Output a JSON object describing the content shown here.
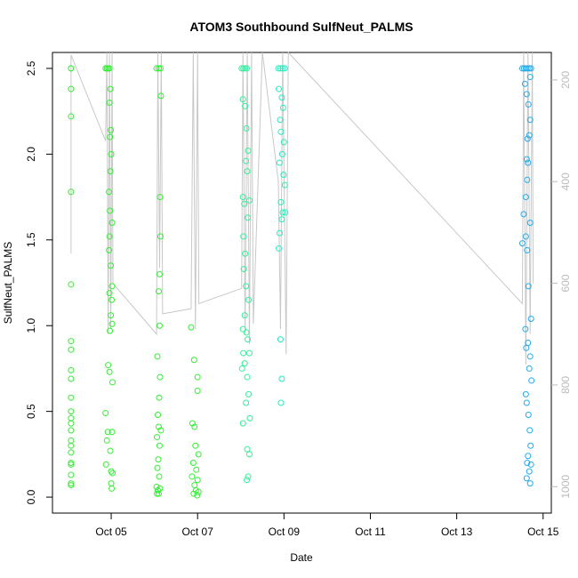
{
  "chart_data": {
    "type": "scatter",
    "title": "ATOM3 Southbound SulfNeut_PALMS",
    "x_label": "Date",
    "y_label": "SulfNeut_PALMS",
    "xlim": [
      3.64,
      15.19
    ],
    "ylim": [
      -0.093,
      2.593
    ],
    "y2lim": [
      1052,
      146
    ],
    "xticks": [
      {
        "value": 5,
        "label": "Oct 05"
      },
      {
        "value": 7,
        "label": "Oct 07"
      },
      {
        "value": 9,
        "label": "Oct 09"
      },
      {
        "value": 11,
        "label": "Oct 11"
      },
      {
        "value": 13,
        "label": "Oct 13"
      },
      {
        "value": 15,
        "label": "Oct 15"
      }
    ],
    "yticks": [
      {
        "value": 0,
        "label": "0.0"
      },
      {
        "value": 0.5,
        "label": "0.5"
      },
      {
        "value": 1,
        "label": "1.0"
      },
      {
        "value": 1.5,
        "label": "1.5"
      },
      {
        "value": 2,
        "label": "2.0"
      },
      {
        "value": 2.5,
        "label": "2.5"
      }
    ],
    "y2ticks": [
      200,
      400,
      600,
      800,
      1000
    ],
    "series": [
      {
        "type": "line",
        "axis": "y2",
        "color": "#c8c8c8",
        "x": [
          4.07,
          4.07,
          4.87,
          4.9,
          4.93,
          4.96,
          4.99,
          5.02,
          5.04,
          6.05,
          6.08,
          6.12,
          6.16,
          6.19,
          6.85,
          6.9,
          6.95,
          7.0,
          7.03,
          8.02,
          8.05,
          8.1,
          8.15,
          8.2,
          8.25,
          8.29,
          8.5,
          8.87,
          8.92,
          8.97,
          9.05,
          9.1,
          14.52,
          14.55,
          14.6,
          14.65,
          14.7,
          14.75,
          14.77
        ],
        "values": [
          541,
          151,
          320,
          146,
          700,
          146,
          690,
          146,
          600,
          700,
          146,
          570,
          146,
          660,
          650,
          146,
          690,
          146,
          640,
          610,
          146,
          700,
          146,
          720,
          146,
          680,
          146,
          400,
          690,
          146,
          740,
          146,
          640,
          146,
          760,
          146,
          700,
          146,
          600
        ]
      },
      {
        "type": "scatter",
        "color": "#33ee33",
        "x": [
          4.07,
          4.07,
          4.07,
          4.07,
          4.07,
          4.07,
          4.07,
          4.07,
          4.07,
          4.07,
          4.07,
          4.07,
          4.07,
          4.07,
          4.07,
          4.07,
          4.07,
          4.07,
          4.07,
          4.07,
          4.07,
          4.07,
          4.07
        ],
        "values": [
          2.5,
          2.5,
          2.38,
          2.22,
          1.78,
          1.24,
          0.91,
          0.86,
          0.74,
          0.69,
          0.58,
          0.5,
          0.46,
          0.43,
          0.39,
          0.33,
          0.3,
          0.26,
          0.2,
          0.19,
          0.13,
          0.08,
          0.07
        ]
      },
      {
        "type": "scatter",
        "color": "#33ee33",
        "x": [
          4.87,
          4.9,
          4.93,
          4.96,
          4.98,
          4.96,
          4.99,
          4.97,
          5.0,
          4.98,
          4.95,
          4.97,
          5.02,
          4.96,
          4.95,
          4.99,
          5.02,
          4.96,
          5.01,
          4.99,
          4.97,
          5.02,
          4.93,
          4.96,
          5.03,
          4.87,
          4.92,
          5.02,
          4.9,
          4.98,
          4.88,
          5.0,
          5.03,
          5.0,
          5.01
        ],
        "values": [
          2.5,
          2.5,
          2.5,
          2.5,
          2.38,
          2.3,
          2.14,
          2.1,
          2.0,
          1.9,
          1.78,
          1.67,
          1.6,
          1.52,
          1.44,
          1.35,
          1.23,
          1.19,
          1.15,
          1.06,
          0.97,
          1.01,
          0.77,
          0.73,
          0.67,
          0.49,
          0.38,
          0.38,
          0.33,
          0.27,
          0.19,
          0.15,
          0.14,
          0.08,
          0.05
        ]
      },
      {
        "type": "scatter",
        "color": "#33ee33",
        "x": [
          6.05,
          6.1,
          6.14,
          6.15,
          6.13,
          6.14,
          6.12,
          6.1,
          6.12,
          6.07,
          6.13,
          6.11,
          6.08,
          6.1,
          6.15,
          6.06,
          6.12,
          6.09,
          6.07,
          6.11,
          6.05,
          6.08,
          6.1,
          6.13,
          6.06
        ],
        "values": [
          2.5,
          2.5,
          2.5,
          2.34,
          1.75,
          1.52,
          1.3,
          1.2,
          1.0,
          0.82,
          0.7,
          0.58,
          0.48,
          0.41,
          0.39,
          0.35,
          0.3,
          0.22,
          0.17,
          0.12,
          0.06,
          0.04,
          0.02,
          0.05,
          0.02
        ]
      },
      {
        "type": "scatter",
        "color": "#33ee33",
        "x": [
          6.85,
          6.92,
          7.0,
          7.0,
          6.88,
          6.93,
          6.95,
          7.02,
          6.9,
          6.97,
          6.87,
          7.0,
          6.93,
          6.96,
          7.02,
          6.99,
          6.91
        ],
        "values": [
          0.99,
          0.8,
          0.7,
          0.62,
          0.43,
          0.41,
          0.3,
          0.25,
          0.2,
          0.16,
          0.12,
          0.1,
          0.07,
          0.04,
          0.03,
          0.01,
          0.02
        ]
      },
      {
        "type": "scatter",
        "color": "#33ee99",
        "x": [
          8.02,
          8.06,
          8.1,
          8.14,
          8.05,
          8.1,
          8.13,
          8.17,
          8.12,
          8.15,
          8.05,
          8.08,
          8.2,
          8.06,
          8.16,
          8.1,
          8.07,
          8.12,
          8.18,
          8.09,
          8.05,
          8.13,
          8.16,
          8.06,
          8.2,
          8.03,
          8.09,
          8.15,
          8.18,
          8.12,
          8.21,
          8.05,
          8.15,
          8.2,
          8.17,
          8.14
        ],
        "values": [
          2.5,
          2.5,
          2.5,
          2.5,
          2.32,
          2.28,
          2.15,
          2.02,
          1.96,
          1.9,
          1.75,
          1.71,
          1.73,
          1.52,
          1.63,
          1.42,
          1.33,
          1.23,
          1.15,
          1.06,
          0.98,
          0.96,
          0.92,
          0.84,
          0.84,
          0.75,
          0.78,
          0.7,
          0.6,
          0.55,
          0.46,
          0.43,
          0.28,
          0.25,
          0.12,
          0.1
        ]
      },
      {
        "type": "scatter",
        "color": "#22eebb",
        "x": [
          8.87,
          8.92,
          8.97,
          9.02,
          8.88,
          8.95,
          8.98,
          8.91,
          8.93,
          9.0,
          8.96,
          8.9,
          8.99,
          9.02,
          8.93,
          8.97,
          9.03,
          8.95,
          8.9,
          8.88,
          8.92,
          8.95,
          8.93
        ],
        "values": [
          2.5,
          2.5,
          2.5,
          2.5,
          2.38,
          2.33,
          2.27,
          2.2,
          2.13,
          2.07,
          2.0,
          1.95,
          1.88,
          1.82,
          1.72,
          1.66,
          1.66,
          1.62,
          1.54,
          1.45,
          0.92,
          0.69,
          0.55
        ]
      },
      {
        "type": "scatter",
        "color": "#22aaee",
        "x": [
          14.52,
          14.56,
          14.6,
          14.64,
          14.68,
          14.72,
          14.7,
          14.58,
          14.62,
          14.66,
          14.7,
          14.64,
          14.68,
          14.62,
          14.65,
          14.63,
          14.6,
          14.7,
          14.55,
          14.52,
          14.6,
          14.63,
          14.66,
          14.72,
          14.59,
          14.65,
          14.61,
          14.7,
          14.68,
          14.73,
          14.6,
          14.62,
          14.66,
          14.69,
          14.71,
          14.65,
          14.63,
          14.72,
          14.68,
          14.62,
          14.7
        ],
        "values": [
          2.5,
          2.5,
          2.5,
          2.5,
          2.5,
          2.5,
          2.45,
          2.41,
          2.35,
          2.29,
          2.2,
          2.09,
          2.11,
          1.97,
          1.95,
          1.85,
          1.75,
          1.6,
          1.65,
          1.48,
          1.52,
          1.44,
          1.23,
          1.04,
          0.98,
          0.9,
          0.87,
          0.82,
          0.75,
          0.68,
          0.6,
          0.55,
          0.48,
          0.39,
          0.3,
          0.24,
          0.2,
          0.19,
          0.15,
          0.11,
          0.08
        ]
      }
    ]
  }
}
